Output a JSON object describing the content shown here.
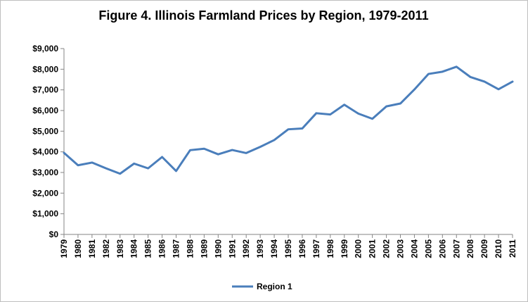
{
  "chart_data": {
    "type": "line",
    "title": "Figure 4. Illinois Farmland Prices by Region, 1979-2011",
    "xlabel": "",
    "ylabel": "",
    "ylim": [
      0,
      9000
    ],
    "ytick_values": [
      0,
      1000,
      2000,
      3000,
      4000,
      5000,
      6000,
      7000,
      8000,
      9000
    ],
    "ytick_labels": [
      "$0",
      "$1,000",
      "$2,000",
      "$3,000",
      "$4,000",
      "$5,000",
      "$6,000",
      "$7,000",
      "$8,000",
      "$9,000"
    ],
    "categories": [
      "1979",
      "1980",
      "1981",
      "1982",
      "1983",
      "1984",
      "1985",
      "1986",
      "1987",
      "1988",
      "1989",
      "1990",
      "1991",
      "1992",
      "1993",
      "1994",
      "1995",
      "1996",
      "1997",
      "1998",
      "1999",
      "2000",
      "2001",
      "2002",
      "2003",
      "2004",
      "2005",
      "2006",
      "2007",
      "2008",
      "2009",
      "2010",
      "2011"
    ],
    "grid": false,
    "legend_position": "bottom",
    "series": [
      {
        "name": "Region 1",
        "color": "#4a7ebb",
        "values": [
          3950,
          3350,
          3480,
          3200,
          2940,
          3430,
          3200,
          3750,
          3070,
          4080,
          4150,
          3880,
          4090,
          3940,
          4240,
          4570,
          5090,
          5130,
          5870,
          5810,
          6280,
          5850,
          5600,
          6200,
          6340,
          7020,
          7770,
          7880,
          8120,
          7620,
          7400,
          7030,
          7400
        ]
      }
    ]
  }
}
